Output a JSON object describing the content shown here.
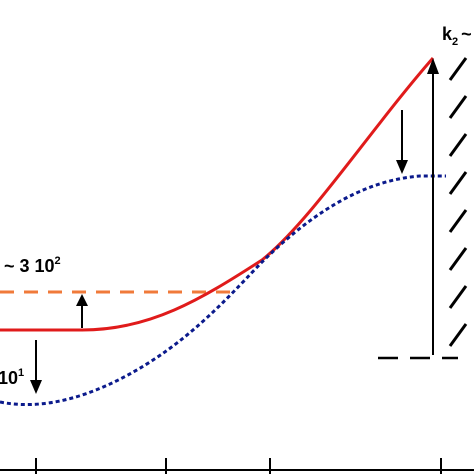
{
  "labels": {
    "k2_base": "k",
    "k2_sub": "2",
    "k2_tilde": "~",
    "left_top_prefix": "~ 3 10",
    "left_top_exp": "2",
    "left_bottom_base": "10",
    "left_bottom_exp": "1"
  },
  "colors": {
    "solid_curve": "#e01b1b",
    "dotted_curve": "#0b1a8c",
    "dashed_reference": "#f07a3a",
    "ink": "#000000"
  }
}
